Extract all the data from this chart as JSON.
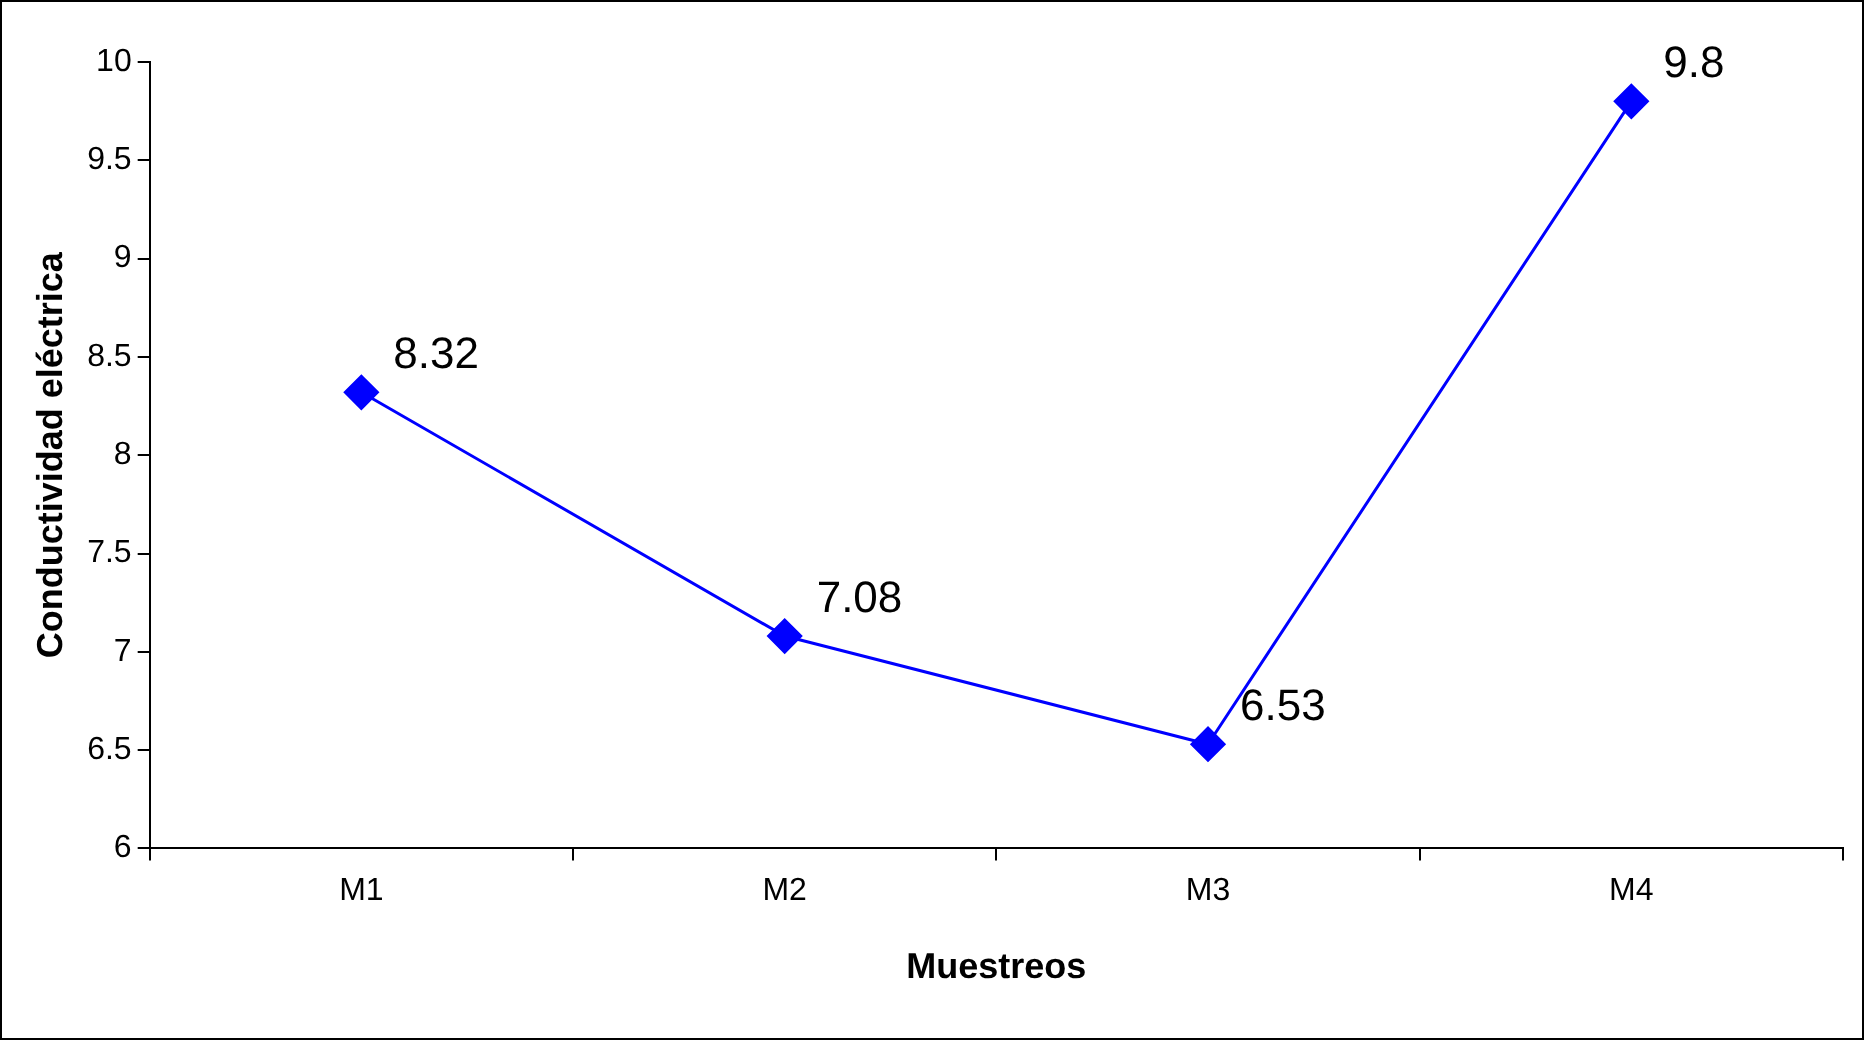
{
  "chart_data": {
    "type": "line",
    "xlabel": "Muestreos",
    "ylabel": "Conductividad eléctrica",
    "categories": [
      "M1",
      "M2",
      "M3",
      "M4"
    ],
    "series": [
      {
        "color": "#0000ff",
        "values": [
          8.32,
          7.08,
          6.53,
          9.8
        ]
      }
    ],
    "ylim": [
      6,
      10
    ],
    "yticks": [
      6,
      6.5,
      7,
      7.5,
      8,
      8.5,
      9,
      9.5,
      10
    ],
    "grid": false,
    "legend": false,
    "marker": "diamond",
    "line_style": "solid",
    "data_labels": true
  }
}
